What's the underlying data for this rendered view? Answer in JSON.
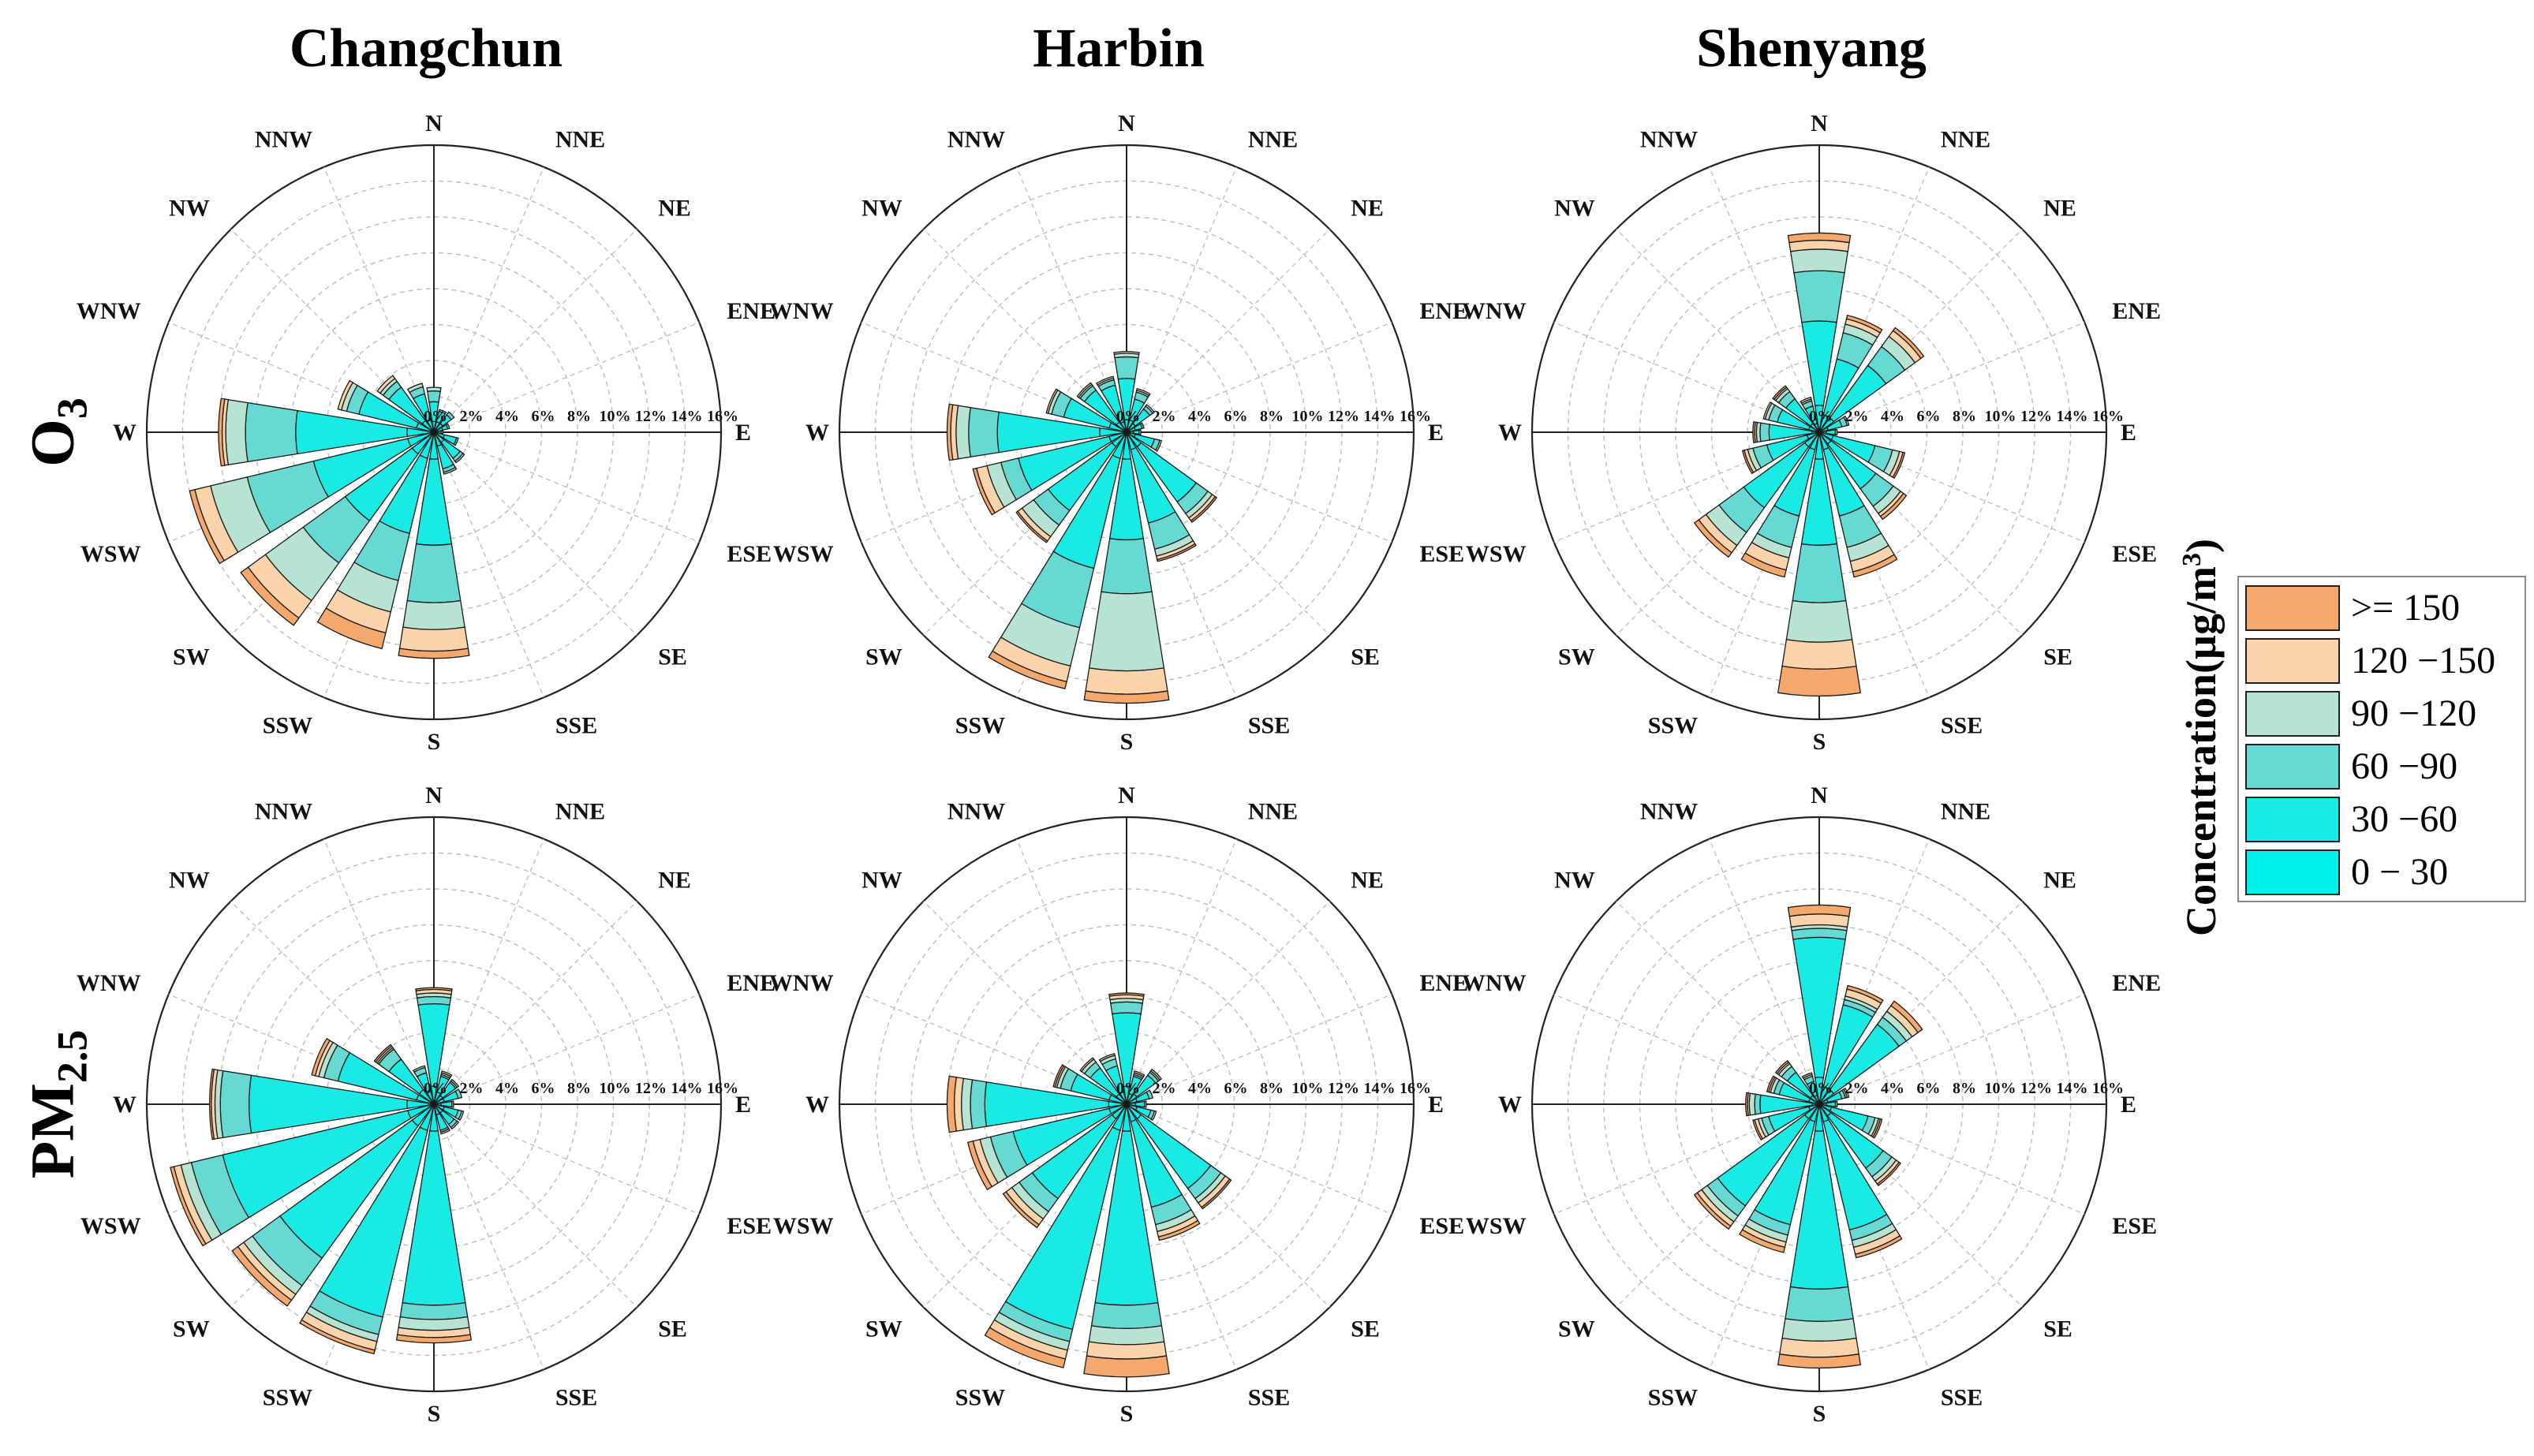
{
  "cities": [
    "Changchun",
    "Harbin",
    "Shenyang"
  ],
  "rows": [
    {
      "label": "O",
      "sub": "3"
    },
    {
      "label": "PM",
      "sub": "2.5"
    }
  ],
  "legend": {
    "title": "Concentration(µg/m",
    "title_sup": "3",
    "title_end": ")",
    "items": [
      {
        "label": ">= 150",
        "color": "#F5A86B"
      },
      {
        "label": "120 −150",
        "color": "#FAD3AA"
      },
      {
        "label": "90 −120",
        "color": "#B7E4D2"
      },
      {
        "label": "60 −90",
        "color": "#66D9D3"
      },
      {
        "label": "30 −60",
        "color": "#19EAE3"
      },
      {
        "label": "0 − 30",
        "color": "#00F2EB"
      }
    ]
  },
  "chart_data": [
    {
      "type": "wind_rose",
      "city": "Changchun",
      "pollutant": "O3",
      "directions": [
        "N",
        "NNE",
        "NE",
        "ENE",
        "E",
        "ESE",
        "SE",
        "SSE",
        "S",
        "SSW",
        "SW",
        "WSW",
        "W",
        "WNW",
        "NW",
        "NNW"
      ],
      "radial_ticks": [
        "0%",
        "2%",
        "4%",
        "6%",
        "8%",
        "10%",
        "12%",
        "14%",
        "16%"
      ],
      "rmax": 16,
      "bins": [
        "0-30",
        "30-60",
        "60-90",
        "90-120",
        "120-150",
        ">=150"
      ],
      "series": [
        [
          0.6,
          1.7,
          2.3,
          2.5,
          2.5,
          2.5
        ],
        [
          0.6,
          1.2,
          1.3,
          1.3,
          1.3,
          1.3
        ],
        [
          0.6,
          1.2,
          1.4,
          1.4,
          1.4,
          1.4
        ],
        [
          0.5,
          0.8,
          0.9,
          0.9,
          0.9,
          0.9
        ],
        [
          0.2,
          0.4,
          0.5,
          0.5,
          0.5,
          0.5
        ],
        [
          0.6,
          1.3,
          1.4,
          1.4,
          1.4,
          1.4
        ],
        [
          0.7,
          1.8,
          2.0,
          2.1,
          2.1,
          2.1
        ],
        [
          0.8,
          2.1,
          2.3,
          2.4,
          2.4,
          2.4
        ],
        [
          1.5,
          6.3,
          9.5,
          11.0,
          12.2,
          12.6
        ],
        [
          1.5,
          5.8,
          8.5,
          10.3,
          11.5,
          12.4
        ],
        [
          1.5,
          6.1,
          9.0,
          11.6,
          12.8,
          13.3
        ],
        [
          1.5,
          6.9,
          10.7,
          12.8,
          13.7,
          14.0
        ],
        [
          1.5,
          7.7,
          10.5,
          11.6,
          11.8,
          12.0
        ],
        [
          1.0,
          4.3,
          5.0,
          5.3,
          5.5,
          5.5
        ],
        [
          0.8,
          3.1,
          3.5,
          3.7,
          3.9,
          3.9
        ],
        [
          0.7,
          2.2,
          2.6,
          2.8,
          2.8,
          2.8
        ]
      ]
    },
    {
      "type": "wind_rose",
      "city": "Harbin",
      "pollutant": "O3",
      "directions": [
        "N",
        "NNE",
        "NE",
        "ENE",
        "E",
        "ESE",
        "SE",
        "SSE",
        "S",
        "SSW",
        "SW",
        "WSW",
        "W",
        "WNW",
        "NW",
        "NNW"
      ],
      "radial_ticks": [
        "0%",
        "2%",
        "4%",
        "6%",
        "8%",
        "10%",
        "12%",
        "14%",
        "16%"
      ],
      "rmax": 16,
      "bins": [
        "0-30",
        "30-60",
        "60-90",
        "90-120",
        "120-150",
        ">=150"
      ],
      "series": [
        [
          0.7,
          3.0,
          4.2,
          4.4,
          4.5,
          4.5
        ],
        [
          0.7,
          1.9,
          2.3,
          2.4,
          2.5,
          2.5
        ],
        [
          0.6,
          1.6,
          1.8,
          1.9,
          1.9,
          1.9
        ],
        [
          0.5,
          0.9,
          1.0,
          1.0,
          1.0,
          1.0
        ],
        [
          0.4,
          0.7,
          0.8,
          0.8,
          0.8,
          0.8
        ],
        [
          0.5,
          1.6,
          1.9,
          2.0,
          2.0,
          2.0
        ],
        [
          1.0,
          4.8,
          5.6,
          5.9,
          6.1,
          6.2
        ],
        [
          1.0,
          5.2,
          6.7,
          7.1,
          7.3,
          7.4
        ],
        [
          1.5,
          6.0,
          9.0,
          13.3,
          14.6,
          15.1
        ],
        [
          1.5,
          7.8,
          11.2,
          13.4,
          14.3,
          14.7
        ],
        [
          1.0,
          5.4,
          6.4,
          7.2,
          7.5,
          7.6
        ],
        [
          1.0,
          6.2,
          7.2,
          8.0,
          8.6,
          8.8
        ],
        [
          1.5,
          7.2,
          8.8,
          9.5,
          9.8,
          10.0
        ],
        [
          1.0,
          3.6,
          4.3,
          4.5,
          4.6,
          4.6
        ],
        [
          0.7,
          2.9,
          3.2,
          3.3,
          3.4,
          3.4
        ],
        [
          0.6,
          2.7,
          3.0,
          3.1,
          3.2,
          3.2
        ]
      ]
    },
    {
      "type": "wind_rose",
      "city": "Shenyang",
      "pollutant": "O3",
      "directions": [
        "N",
        "NNE",
        "NE",
        "ENE",
        "E",
        "ESE",
        "SE",
        "SSE",
        "S",
        "SSW",
        "SW",
        "WSW",
        "W",
        "WNW",
        "NW",
        "NNW"
      ],
      "radial_ticks": [
        "0%",
        "2%",
        "4%",
        "6%",
        "8%",
        "10%",
        "12%",
        "14%",
        "16%"
      ],
      "rmax": 16,
      "bins": [
        "0-30",
        "30-60",
        "60-90",
        "90-120",
        "120-150",
        ">=150"
      ],
      "series": [
        [
          1.5,
          6.2,
          9.0,
          10.2,
          10.7,
          11.1
        ],
        [
          1.0,
          4.2,
          5.7,
          6.2,
          6.5,
          6.7
        ],
        [
          1.0,
          4.6,
          5.9,
          6.6,
          7.0,
          7.2
        ],
        [
          0.5,
          1.3,
          1.6,
          1.7,
          1.7,
          1.7
        ],
        [
          0.4,
          0.9,
          1.0,
          1.0,
          1.0,
          1.0
        ],
        [
          0.8,
          3.2,
          4.2,
          4.6,
          4.8,
          4.9
        ],
        [
          0.8,
          3.9,
          5.1,
          5.6,
          5.8,
          6.0
        ],
        [
          1.0,
          4.8,
          6.6,
          7.4,
          8.0,
          8.3
        ],
        [
          1.5,
          6.3,
          9.5,
          11.7,
          13.2,
          14.7
        ],
        [
          1.0,
          4.8,
          6.6,
          7.2,
          7.9,
          8.3
        ],
        [
          1.0,
          5.2,
          6.9,
          7.8,
          8.3,
          8.6
        ],
        [
          0.7,
          3.0,
          3.8,
          4.1,
          4.3,
          4.4
        ],
        [
          0.4,
          2.8,
          3.3,
          3.5,
          3.6,
          3.7
        ],
        [
          0.6,
          2.4,
          2.9,
          3.1,
          3.2,
          3.2
        ],
        [
          0.6,
          2.3,
          2.8,
          3.0,
          3.1,
          3.2
        ],
        [
          0.5,
          1.5,
          1.8,
          1.9,
          2.0,
          2.0
        ]
      ]
    },
    {
      "type": "wind_rose",
      "city": "Changchun",
      "pollutant": "PM2.5",
      "directions": [
        "N",
        "NNE",
        "NE",
        "ENE",
        "E",
        "ESE",
        "SE",
        "SSE",
        "S",
        "SSW",
        "SW",
        "WSW",
        "W",
        "WNW",
        "NW",
        "NNW"
      ],
      "radial_ticks": [
        "0%",
        "2%",
        "4%",
        "6%",
        "8%",
        "10%",
        "12%",
        "14%",
        "16%"
      ],
      "rmax": 16,
      "bins": [
        "0-30",
        "30-60",
        "60-90",
        "90-120",
        "120-150",
        ">=150"
      ],
      "series": [
        [
          1.0,
          5.6,
          6.0,
          6.2,
          6.4,
          6.5
        ],
        [
          0.7,
          1.6,
          1.7,
          1.8,
          1.9,
          1.9
        ],
        [
          0.6,
          1.5,
          1.6,
          1.7,
          1.7,
          1.7
        ],
        [
          0.6,
          1.4,
          1.6,
          1.6,
          1.6,
          1.6
        ],
        [
          0.4,
          1.0,
          1.1,
          1.1,
          1.1,
          1.1
        ],
        [
          0.6,
          1.4,
          1.6,
          1.7,
          1.7,
          1.7
        ],
        [
          0.6,
          1.4,
          1.6,
          1.7,
          1.7,
          1.7
        ],
        [
          0.6,
          1.5,
          1.6,
          1.7,
          1.7,
          1.7
        ],
        [
          1.5,
          11.2,
          12.0,
          12.6,
          13.0,
          13.3
        ],
        [
          1.5,
          12.2,
          13.2,
          13.6,
          14.1,
          14.3
        ],
        [
          1.5,
          10.6,
          12.5,
          13.1,
          13.5,
          13.9
        ],
        [
          1.5,
          12.1,
          13.9,
          14.5,
          14.9,
          15.1
        ],
        [
          1.5,
          10.3,
          11.9,
          12.2,
          12.4,
          12.5
        ],
        [
          1.0,
          5.5,
          6.3,
          6.6,
          6.8,
          7.0
        ],
        [
          1.0,
          3.1,
          3.8,
          3.9,
          4.0,
          4.1
        ],
        [
          0.8,
          1.8,
          2.1,
          2.2,
          2.2,
          2.2
        ]
      ]
    },
    {
      "type": "wind_rose",
      "city": "Harbin",
      "pollutant": "PM2.5",
      "directions": [
        "N",
        "NNE",
        "NE",
        "ENE",
        "E",
        "ESE",
        "SE",
        "SSE",
        "S",
        "SSW",
        "SW",
        "WSW",
        "W",
        "WNW",
        "NW",
        "NNW"
      ],
      "radial_ticks": [
        "0%",
        "2%",
        "4%",
        "6%",
        "8%",
        "10%",
        "12%",
        "14%",
        "16%"
      ],
      "rmax": 16,
      "bins": [
        "0-30",
        "30-60",
        "60-90",
        "90-120",
        "120-150",
        ">=150"
      ],
      "series": [
        [
          1.0,
          5.1,
          5.7,
          5.9,
          6.1,
          6.2
        ],
        [
          0.6,
          1.6,
          1.7,
          1.8,
          1.9,
          1.9
        ],
        [
          0.7,
          2.0,
          2.2,
          2.3,
          2.4,
          2.4
        ],
        [
          0.6,
          1.3,
          1.5,
          1.5,
          1.5,
          1.5
        ],
        [
          0.5,
          1.0,
          1.1,
          1.1,
          1.1,
          1.1
        ],
        [
          0.6,
          1.4,
          1.6,
          1.7,
          1.7,
          1.7
        ],
        [
          1.0,
          5.8,
          6.5,
          6.8,
          7.1,
          7.2
        ],
        [
          1.0,
          5.9,
          6.9,
          7.3,
          7.6,
          7.8
        ],
        [
          1.5,
          11.2,
          12.5,
          13.4,
          14.2,
          15.2
        ],
        [
          1.5,
          12.9,
          13.6,
          14.1,
          14.6,
          15.1
        ],
        [
          1.0,
          6.5,
          7.4,
          7.9,
          8.3,
          8.5
        ],
        [
          1.0,
          6.5,
          7.8,
          8.4,
          8.8,
          9.1
        ],
        [
          1.0,
          7.9,
          8.7,
          9.2,
          9.6,
          10.0
        ],
        [
          1.0,
          3.2,
          3.8,
          4.0,
          4.1,
          4.2
        ],
        [
          0.7,
          2.5,
          2.9,
          3.1,
          3.2,
          3.2
        ],
        [
          0.7,
          2.2,
          2.6,
          2.8,
          2.9,
          2.9
        ]
      ]
    },
    {
      "type": "wind_rose",
      "city": "Shenyang",
      "pollutant": "PM2.5",
      "directions": [
        "N",
        "NNE",
        "NE",
        "ENE",
        "E",
        "ESE",
        "SE",
        "SSE",
        "S",
        "SSW",
        "SW",
        "WSW",
        "W",
        "WNW",
        "NW",
        "NNW"
      ],
      "radial_ticks": [
        "0%",
        "2%",
        "4%",
        "6%",
        "8%",
        "10%",
        "12%",
        "14%",
        "16%"
      ],
      "rmax": 16,
      "bins": [
        "0-30",
        "30-60",
        "60-90",
        "90-120",
        "120-150",
        ">=150"
      ],
      "series": [
        [
          1.5,
          9.3,
          9.8,
          10.0,
          10.6,
          11.1
        ],
        [
          1.0,
          5.7,
          6.0,
          6.2,
          6.6,
          6.8
        ],
        [
          1.0,
          5.5,
          6.0,
          6.4,
          6.8,
          7.1
        ],
        [
          0.5,
          1.3,
          1.5,
          1.6,
          1.7,
          1.7
        ],
        [
          0.4,
          0.9,
          1.0,
          1.0,
          1.0,
          1.0
        ],
        [
          0.7,
          2.8,
          3.2,
          3.4,
          3.5,
          3.6
        ],
        [
          0.8,
          4.4,
          5.0,
          5.3,
          5.5,
          5.6
        ],
        [
          1.0,
          7.2,
          7.8,
          8.2,
          8.6,
          8.8
        ],
        [
          1.5,
          10.3,
          12.1,
          13.2,
          14.1,
          14.7
        ],
        [
          1.0,
          6.9,
          7.5,
          7.9,
          8.2,
          8.5
        ],
        [
          1.0,
          7.0,
          7.7,
          8.1,
          8.4,
          8.6
        ],
        [
          0.6,
          2.9,
          3.3,
          3.5,
          3.7,
          3.8
        ],
        [
          0.4,
          3.3,
          3.6,
          3.9,
          4.0,
          4.1
        ],
        [
          0.6,
          2.3,
          2.6,
          2.8,
          2.9,
          3.0
        ],
        [
          0.6,
          2.2,
          2.6,
          2.8,
          2.9,
          3.0
        ],
        [
          0.5,
          1.3,
          1.6,
          1.7,
          1.8,
          1.8
        ]
      ]
    }
  ]
}
